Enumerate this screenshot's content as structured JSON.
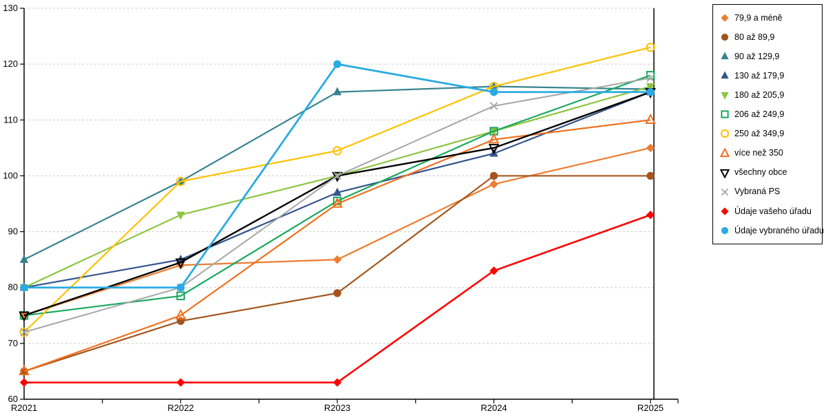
{
  "chart_data": {
    "type": "line",
    "categories": [
      "R2021",
      "R2022",
      "R2023",
      "R2024",
      "R2025"
    ],
    "ylim": [
      60,
      130
    ],
    "ytick_interval": 10,
    "y_tick_labels": [
      "60",
      "70",
      "80",
      "90",
      "100",
      "110",
      "120",
      "130"
    ],
    "grid": "horizontal-dashed",
    "legend_position": "right",
    "series": [
      {
        "name": "79,9 a méně",
        "color": "#ED7D31",
        "marker": "diamond",
        "fill": "filled",
        "line_width": 2.2,
        "values": [
          75,
          84,
          85,
          98.5,
          105
        ]
      },
      {
        "name": "80 až 89,9",
        "color": "#A3551E",
        "marker": "circle",
        "fill": "filled",
        "line_width": 2.2,
        "values": [
          65,
          74,
          79,
          100,
          100
        ]
      },
      {
        "name": "90 až 129,9",
        "color": "#35828F",
        "marker": "triangle-up",
        "fill": "filled",
        "line_width": 2.2,
        "values": [
          85,
          99,
          115,
          116,
          115.5
        ]
      },
      {
        "name": "130 až 179,9",
        "color": "#33548C",
        "marker": "triangle-up",
        "fill": "filled",
        "line_width": 2.2,
        "values": [
          80,
          85,
          97,
          104,
          115
        ]
      },
      {
        "name": "180 až 205,9",
        "color": "#8CC540",
        "marker": "triangle-down",
        "fill": "filled",
        "line_width": 2.2,
        "values": [
          80,
          93,
          100,
          108,
          116
        ]
      },
      {
        "name": "206 až 249,9",
        "color": "#16A75C",
        "marker": "square",
        "fill": "open",
        "line_width": 2.2,
        "values": [
          75,
          78.5,
          95.5,
          108,
          118
        ]
      },
      {
        "name": "250 až 349,9",
        "color": "#FFC000",
        "marker": "circle",
        "fill": "open",
        "line_width": 2.2,
        "values": [
          72,
          99,
          104.5,
          116,
          123
        ]
      },
      {
        "name": "více než 350",
        "color": "#F0701E",
        "marker": "triangle-up",
        "fill": "open",
        "line_width": 2.2,
        "values": [
          65,
          75,
          95,
          106.5,
          110
        ]
      },
      {
        "name": "všechny obce",
        "color": "#000000",
        "marker": "triangle-down",
        "fill": "open",
        "line_width": 2.4,
        "values": [
          75,
          84.5,
          100,
          105,
          115
        ]
      },
      {
        "name": "Vybraná PS",
        "color": "#A6A6A6",
        "marker": "x",
        "fill": "open",
        "line_width": 2.0,
        "values": [
          72,
          80,
          100,
          112.5,
          117.5
        ]
      },
      {
        "name": "Údaje vašeho úřadu",
        "color": "#FE0000",
        "marker": "diamond",
        "fill": "filled",
        "line_width": 2.6,
        "values": [
          63,
          63,
          63,
          83,
          93
        ]
      },
      {
        "name": "Údaje vybraného úřadu",
        "color": "#29ABE2",
        "marker": "circle",
        "fill": "filled",
        "line_width": 2.8,
        "values": [
          80,
          80,
          120,
          115,
          115
        ]
      }
    ]
  },
  "colors": {
    "background": "#FFFFFF",
    "axis": "#000000",
    "gridline": "#C9C9C9",
    "tick_label": "#000000"
  }
}
